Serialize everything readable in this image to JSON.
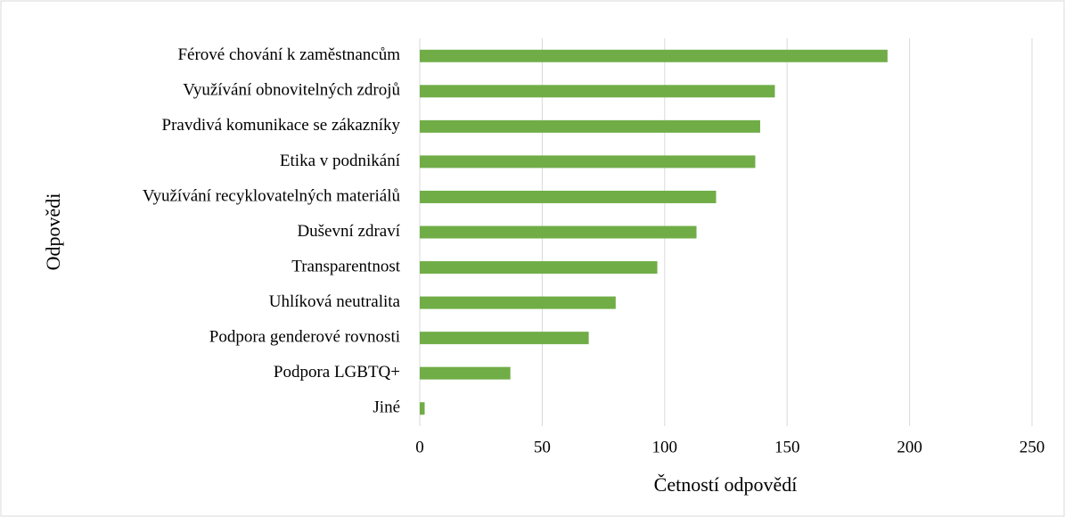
{
  "chart_data": {
    "type": "bar",
    "orientation": "horizontal",
    "x_label": "Četností odpovědí",
    "y_label": "Odpovědi",
    "categories": [
      "Férové chování k zaměstnancům",
      "Využívání obnovitelných zdrojů",
      "Pravdivá komunikace se zákazníky",
      "Etika v podnikání",
      "Využívání recyklovatelných materiálů",
      "Duševní zdraví",
      "Transparentnost",
      "Uhlíková neutralita",
      "Podpora genderové rovnosti",
      "Podpora LGBTQ+",
      "Jiné"
    ],
    "values": [
      191,
      145,
      139,
      137,
      121,
      113,
      97,
      80,
      69,
      37,
      2
    ],
    "color": "#70ad47",
    "xlim": [
      0,
      250
    ],
    "xticks": [
      0,
      50,
      100,
      150,
      200,
      250
    ],
    "grid": true
  }
}
